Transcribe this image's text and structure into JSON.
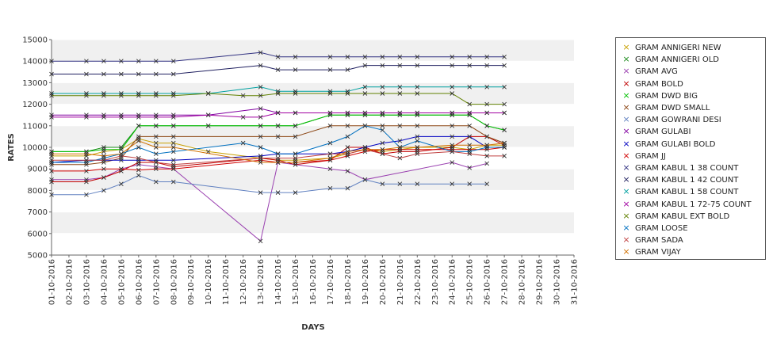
{
  "chart_data": {
    "type": "line",
    "title": "",
    "xlabel": "DAYS",
    "ylabel": "RATES",
    "ylim": [
      5000,
      15000
    ],
    "yticks": [
      5000,
      6000,
      7000,
      8000,
      9000,
      10000,
      11000,
      12000,
      13000,
      14000,
      15000
    ],
    "x": [
      "01-10-2016",
      "02-10-2016",
      "03-10-2016",
      "04-10-2016",
      "05-10-2016",
      "06-10-2016",
      "07-10-2016",
      "08-10-2016",
      "09-10-2016",
      "10-10-2016",
      "11-10-2016",
      "12-10-2016",
      "13-10-2016",
      "14-10-2016",
      "15-10-2016",
      "16-10-2016",
      "17-10-2016",
      "18-10-2016",
      "19-10-2016",
      "20-10-2016",
      "21-10-2016",
      "22-10-2016",
      "23-10-2016",
      "24-10-2016",
      "25-10-2016",
      "26-10-2016",
      "27-10-2016",
      "28-10-2016",
      "29-10-2016",
      "30-10-2016",
      "31-10-2016"
    ],
    "grid": true,
    "legend_position": "right",
    "series": [
      {
        "name": "GRAM ANNIGERI NEW",
        "color": "#c8a000",
        "values": [
          9600,
          null,
          9600,
          9800,
          9900,
          10400,
          10200,
          10200,
          null,
          9800,
          null,
          null,
          9500,
          9400,
          9400,
          null,
          9500,
          9700,
          9900,
          9800,
          9900,
          10000,
          null,
          10000,
          9900,
          10100,
          10100,
          null,
          null,
          null,
          null
        ]
      },
      {
        "name": "GRAM ANNIGERI OLD",
        "color": "#1a8a1a",
        "values": [
          9800,
          null,
          9800,
          10000,
          10000,
          11000,
          11000,
          11000,
          null,
          11000,
          null,
          null,
          11000,
          11000,
          11000,
          null,
          11500,
          11500,
          11500,
          11500,
          11500,
          11500,
          null,
          11500,
          11500,
          11000,
          10800,
          null,
          null,
          null,
          null
        ]
      },
      {
        "name": "GRAM AVG",
        "color": "#9a40b0",
        "values": [
          8500,
          null,
          8500,
          8600,
          9000,
          9200,
          9100,
          9000,
          null,
          null,
          null,
          null,
          5650,
          9300,
          9200,
          null,
          9000,
          8900,
          8500,
          null,
          null,
          null,
          null,
          9300,
          9050,
          9250,
          null,
          null,
          null,
          null,
          null
        ]
      },
      {
        "name": "GRAM BOLD",
        "color": "#c00000",
        "values": [
          8400,
          null,
          8400,
          8600,
          8900,
          9300,
          9300,
          9100,
          null,
          null,
          null,
          null,
          9500,
          9400,
          9200,
          null,
          9400,
          10000,
          10000,
          9700,
          9800,
          9800,
          null,
          10000,
          10500,
          10500,
          10100,
          null,
          null,
          null,
          null
        ]
      },
      {
        "name": "GRAM DWD BIG",
        "color": "#00c000",
        "values": [
          9800,
          null,
          9800,
          9900,
          9900,
          11000,
          11000,
          11000,
          null,
          11000,
          null,
          null,
          11000,
          11000,
          11000,
          null,
          11500,
          11500,
          11500,
          11500,
          11500,
          11500,
          null,
          11500,
          11500,
          11000,
          10800,
          null,
          null,
          null,
          null
        ]
      },
      {
        "name": "GRAM DWD SMALL",
        "color": "#8b4513",
        "values": [
          9200,
          null,
          9200,
          9300,
          9500,
          10500,
          10500,
          10500,
          null,
          null,
          null,
          null,
          10500,
          10500,
          10500,
          null,
          11000,
          11000,
          11000,
          11000,
          11000,
          11000,
          null,
          11000,
          11000,
          10500,
          10200,
          null,
          null,
          null,
          null
        ]
      },
      {
        "name": "GRAM GOWRANI DESI",
        "color": "#6080c0",
        "values": [
          7800,
          null,
          7800,
          8000,
          8300,
          8700,
          8400,
          8400,
          null,
          null,
          null,
          null,
          7900,
          7900,
          7900,
          null,
          8100,
          8100,
          8500,
          8300,
          8300,
          8300,
          null,
          8300,
          8300,
          8300,
          null,
          null,
          null,
          null,
          null
        ]
      },
      {
        "name": "GRAM GULABI",
        "color": "#8000a0",
        "values": [
          11500,
          null,
          11500,
          11500,
          11500,
          11500,
          11500,
          11500,
          null,
          11500,
          null,
          null,
          11800,
          11600,
          11600,
          null,
          11600,
          11600,
          11600,
          11600,
          11600,
          11600,
          null,
          11600,
          11600,
          11600,
          11600,
          null,
          null,
          null,
          null
        ]
      },
      {
        "name": "GRAM GULABI BOLD",
        "color": "#0000c0",
        "values": [
          9300,
          null,
          9400,
          9400,
          9400,
          9400,
          9400,
          9400,
          null,
          null,
          null,
          null,
          9600,
          9700,
          9700,
          null,
          9700,
          9800,
          10000,
          10200,
          10300,
          10500,
          null,
          10500,
          10500,
          10000,
          10000,
          null,
          null,
          null,
          null
        ]
      },
      {
        "name": "GRAM JJ",
        "color": "#d00000",
        "values": [
          8900,
          null,
          8900,
          9000,
          9000,
          8950,
          9000,
          9000,
          null,
          null,
          null,
          null,
          9400,
          9300,
          9300,
          null,
          9400,
          9600,
          9800,
          9900,
          9900,
          9900,
          null,
          9900,
          9900,
          9900,
          10000,
          null,
          null,
          null,
          null
        ]
      },
      {
        "name": "GRAM KABUL 1 38 COUNT",
        "color": "#303080",
        "values": [
          14000,
          null,
          14000,
          14000,
          14000,
          14000,
          14000,
          14000,
          null,
          null,
          null,
          null,
          14400,
          14200,
          14200,
          null,
          14200,
          14200,
          14200,
          14200,
          14200,
          14200,
          null,
          14200,
          14200,
          14200,
          14200,
          null,
          null,
          null,
          null
        ]
      },
      {
        "name": "GRAM KABUL 1 42 COUNT",
        "color": "#202060",
        "values": [
          13400,
          null,
          13400,
          13400,
          13400,
          13400,
          13400,
          13400,
          null,
          null,
          null,
          null,
          13800,
          13600,
          13600,
          null,
          13600,
          13600,
          13800,
          13800,
          13800,
          13800,
          null,
          13800,
          13800,
          13800,
          13800,
          null,
          null,
          null,
          null
        ]
      },
      {
        "name": "GRAM KABUL 1 58 COUNT",
        "color": "#00a0a0",
        "values": [
          12500,
          null,
          12500,
          12500,
          12500,
          12500,
          12500,
          12500,
          null,
          12500,
          null,
          null,
          12800,
          12600,
          12600,
          null,
          12600,
          12600,
          12800,
          12800,
          12800,
          12800,
          null,
          12800,
          12800,
          12800,
          12800,
          null,
          null,
          null,
          null
        ]
      },
      {
        "name": "GRAM KABUL 1 72-75 COUNT",
        "color": "#a000a0",
        "values": [
          11400,
          null,
          11400,
          11400,
          11400,
          11400,
          11400,
          11400,
          null,
          11500,
          null,
          11400,
          11400,
          11600,
          11600,
          null,
          11600,
          11600,
          11600,
          11600,
          11600,
          11600,
          null,
          11600,
          11600,
          11600,
          11600,
          null,
          null,
          null,
          null
        ]
      },
      {
        "name": "GRAM KABUL EXT BOLD",
        "color": "#608000",
        "values": [
          12400,
          null,
          12400,
          12400,
          12400,
          12400,
          12400,
          12400,
          null,
          12500,
          null,
          12400,
          12400,
          12500,
          12500,
          null,
          12500,
          12500,
          12500,
          12500,
          12500,
          12500,
          null,
          12500,
          12000,
          12000,
          12000,
          null,
          null,
          null,
          null
        ]
      },
      {
        "name": "GRAM LOOSE",
        "color": "#0070c0",
        "values": [
          9300,
          null,
          9300,
          9500,
          9700,
          10000,
          9700,
          9800,
          null,
          null,
          null,
          10200,
          10000,
          9700,
          9700,
          null,
          10200,
          10500,
          11000,
          10800,
          10000,
          10300,
          null,
          9800,
          9800,
          10000,
          10000,
          null,
          null,
          null,
          null
        ]
      },
      {
        "name": "GRAM SADA",
        "color": "#c04040",
        "values": [
          9400,
          null,
          9400,
          9400,
          9600,
          9500,
          9300,
          9200,
          null,
          null,
          null,
          null,
          9500,
          9500,
          9500,
          null,
          9700,
          9700,
          9900,
          9700,
          9500,
          9700,
          null,
          9800,
          9700,
          9600,
          9600,
          null,
          null,
          null,
          null
        ]
      },
      {
        "name": "GRAM VIJAY",
        "color": "#d07000",
        "values": [
          9700,
          null,
          9700,
          9600,
          9700,
          10300,
          10000,
          10000,
          null,
          null,
          null,
          null,
          9300,
          9300,
          9300,
          null,
          9500,
          9800,
          9900,
          9900,
          10000,
          10000,
          null,
          10100,
          10100,
          10100,
          10200,
          null,
          null,
          null,
          null
        ]
      }
    ]
  }
}
